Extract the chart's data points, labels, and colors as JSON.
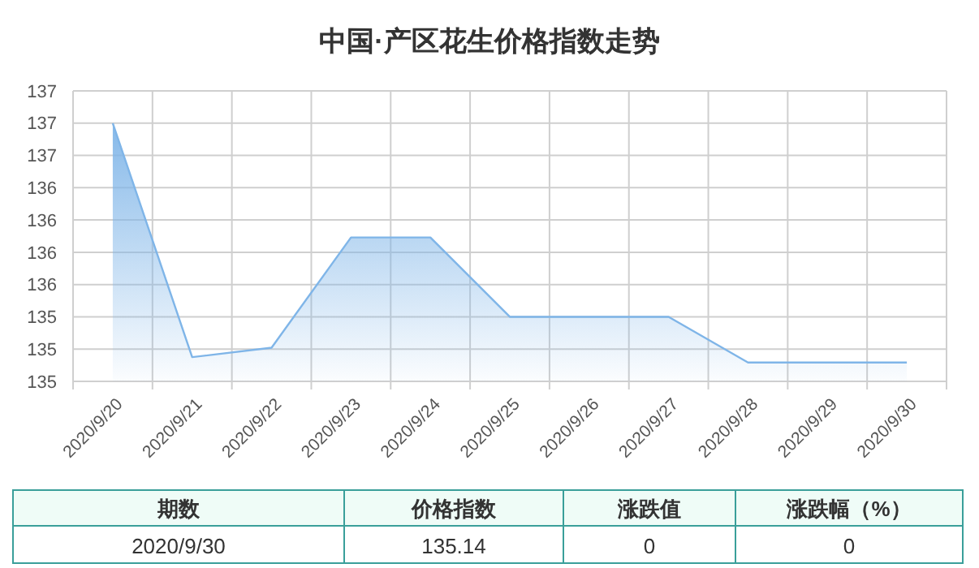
{
  "chart_data": {
    "type": "area",
    "title": "中国·产区花生价格指数走势",
    "categories": [
      "2020/9/20",
      "2020/9/21",
      "2020/9/22",
      "2020/9/23",
      "2020/9/24",
      "2020/9/25",
      "2020/9/26",
      "2020/9/27",
      "2020/9/28",
      "2020/9/29",
      "2020/9/30"
    ],
    "series": [
      {
        "color": "#7fb5e8",
        "values": [
          136.92,
          135.18,
          135.25,
          136.07,
          136.07,
          135.48,
          135.48,
          135.48,
          135.14,
          135.14,
          135.14
        ]
      }
    ],
    "ylim": [
      135,
      137.16
    ],
    "yticks": [
      {
        "value": 135,
        "label": "135"
      },
      {
        "value": 135.24,
        "label": "135"
      },
      {
        "value": 135.48,
        "label": "135"
      },
      {
        "value": 135.72,
        "label": "136"
      },
      {
        "value": 135.96,
        "label": "136"
      },
      {
        "value": 136.2,
        "label": "136"
      },
      {
        "value": 136.44,
        "label": "136"
      },
      {
        "value": 136.68,
        "label": "137"
      },
      {
        "value": 136.92,
        "label": "137"
      },
      {
        "value": 137.16,
        "label": "137"
      }
    ],
    "grid": true,
    "marker": "none",
    "annotations": [
      "期数",
      "价格指数",
      "涨跌值",
      "涨跌幅（%）",
      "2020/9/30",
      "135.14",
      "0",
      "0"
    ]
  }
}
